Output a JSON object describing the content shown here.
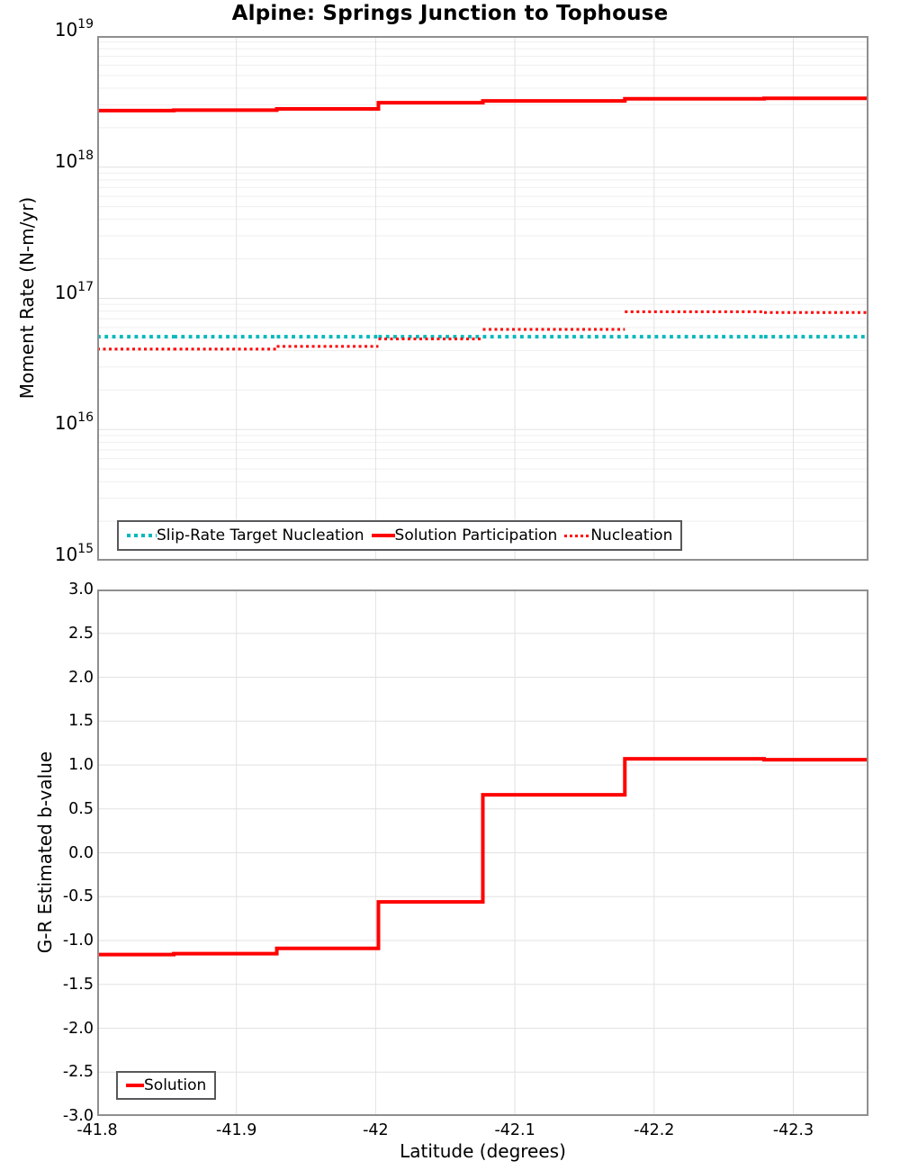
{
  "title": "Alpine: Springs Junction to Tophouse",
  "style": {
    "red": "#ff0000",
    "cyan": "#00b8bc",
    "grid_major": "#e2e2e2",
    "grid_minor": "#efefef",
    "frame": "#8f8f8f",
    "legend_border": "#58585a"
  },
  "x_axis": {
    "label": "Latitude (degrees)",
    "range": [
      -41.8,
      -42.354
    ],
    "reversed": true,
    "ticks": [
      {
        "label": "-41.8",
        "value": -41.8
      },
      {
        "label": "-41.9",
        "value": -41.9
      },
      {
        "label": "-42",
        "value": -42.0
      },
      {
        "label": "-42.1",
        "value": -42.1
      },
      {
        "label": "-42.2",
        "value": -42.2
      },
      {
        "label": "-42.3",
        "value": -42.3
      }
    ]
  },
  "chart_data": [
    {
      "type": "line",
      "subtype": "step",
      "ylabel": "Moment Rate (N-m/yr)",
      "yscale": "log",
      "ylim": [
        1000000000000000.0,
        1e+19
      ],
      "grid": true,
      "legend_position": "inside-bottom-left",
      "yticks": [
        {
          "base": "10",
          "exp": "19",
          "value": 1e+19
        },
        {
          "base": "10",
          "exp": "18",
          "value": 1e+18
        },
        {
          "base": "10",
          "exp": "17",
          "value": 1e+17
        },
        {
          "base": "10",
          "exp": "16",
          "value": 1e+16
        },
        {
          "base": "10",
          "exp": "15",
          "value": 1000000000000000.0
        }
      ],
      "x_boundaries": [
        -41.8,
        -41.855,
        -41.929,
        -42.002,
        -42.077,
        -42.179,
        -42.279,
        -42.354
      ],
      "series": [
        {
          "name": "Slip-Rate Target Nucleation",
          "color_key": "cyan",
          "style": "dotted",
          "width": 4,
          "dash": "3.8 4.5",
          "values": [
            5.1e+16,
            5.1e+16,
            5.1e+16,
            5.1e+16,
            5.1e+16,
            5.1e+16,
            5.1e+16
          ]
        },
        {
          "name": "Solution Participation",
          "color_key": "red",
          "style": "solid",
          "width": 4,
          "dash": "",
          "values": [
            2.7e+18,
            2.72e+18,
            2.78e+18,
            3.1e+18,
            3.2e+18,
            3.32e+18,
            3.35e+18
          ]
        },
        {
          "name": "Nucleation",
          "color_key": "red",
          "style": "dotted",
          "width": 3,
          "dash": "3 3.5",
          "values": [
            4.1e+16,
            4.1e+16,
            4.3e+16,
            4.9e+16,
            5.8e+16,
            7.9e+16,
            7.8e+16
          ]
        }
      ]
    },
    {
      "type": "line",
      "subtype": "step",
      "ylabel": "G-R Estimated b-value",
      "yscale": "linear",
      "ylim": [
        -3.0,
        3.0
      ],
      "grid": true,
      "legend_position": "inside-bottom-left",
      "yticks": [
        {
          "label": "3.0",
          "value": 3.0
        },
        {
          "label": "2.5",
          "value": 2.5
        },
        {
          "label": "2.0",
          "value": 2.0
        },
        {
          "label": "1.5",
          "value": 1.5
        },
        {
          "label": "1.0",
          "value": 1.0
        },
        {
          "label": "0.5",
          "value": 0.5
        },
        {
          "label": "0.0",
          "value": 0.0
        },
        {
          "label": "-0.5",
          "value": -0.5
        },
        {
          "label": "-1.0",
          "value": -1.0
        },
        {
          "label": "-1.5",
          "value": -1.5
        },
        {
          "label": "-2.0",
          "value": -2.0
        },
        {
          "label": "-2.5",
          "value": -2.5
        },
        {
          "label": "-3.0",
          "value": -3.0
        }
      ],
      "x_boundaries": [
        -41.8,
        -41.855,
        -41.929,
        -42.002,
        -42.077,
        -42.179,
        -42.279,
        -42.354
      ],
      "series": [
        {
          "name": "Solution",
          "color_key": "red",
          "style": "solid",
          "width": 4,
          "dash": "",
          "values": [
            -1.16,
            -1.15,
            -1.09,
            -0.56,
            0.66,
            1.07,
            1.06
          ]
        }
      ]
    }
  ]
}
